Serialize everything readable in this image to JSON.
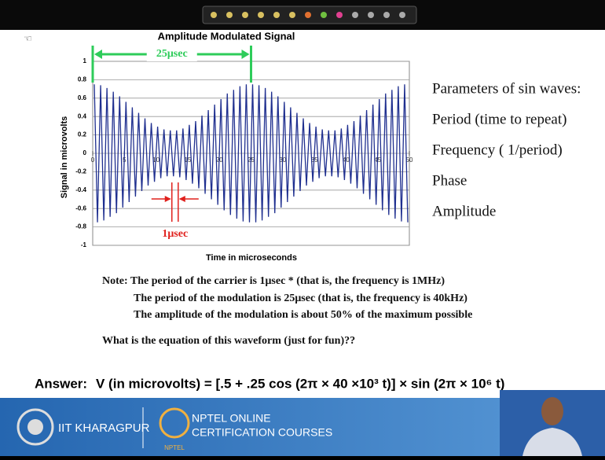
{
  "chart_data": {
    "type": "line",
    "title": "Amplitude Modulated Signal",
    "ylabel": "Signal in microvolts",
    "xlabel": "Time in microseconds",
    "color": "#1f2f8f",
    "xlim": [
      0,
      50
    ],
    "xticks": [
      0,
      5,
      10,
      15,
      20,
      25,
      30,
      35,
      40,
      45,
      50
    ],
    "ylim": [
      -1,
      1
    ],
    "yticks": [
      -1,
      -0.8,
      -0.6,
      -0.4,
      -0.2,
      0,
      0.2,
      0.4,
      0.6,
      0.8,
      1
    ],
    "grid": true,
    "annotations": [
      {
        "text": "25μsec",
        "color": "#2ecc5a"
      },
      {
        "text": "1μsec",
        "color": "#e0201c"
      }
    ],
    "x": [
      0.25,
      0.75,
      1.25,
      1.75,
      2.25,
      2.75,
      3.25,
      3.75,
      4.25,
      4.75,
      5.25,
      5.75,
      6.25,
      6.75,
      7.25,
      7.75,
      8.25,
      8.75,
      9.25,
      9.75,
      10.25,
      10.75,
      11.25,
      11.75,
      12.25,
      12.75,
      13.25,
      13.75,
      14.25,
      14.75,
      15.25,
      15.75,
      16.25,
      16.75,
      17.25,
      17.75,
      18.25,
      18.75,
      19.25,
      19.75,
      20.25,
      20.75,
      21.25,
      21.75,
      22.25,
      22.75,
      23.25,
      23.75,
      24.25,
      24.75,
      25.25,
      25.75,
      26.25,
      26.75,
      27.25,
      27.75,
      28.25,
      28.75,
      29.25,
      29.75,
      30.25,
      30.75,
      31.25,
      31.75,
      32.25,
      32.75,
      33.25,
      33.75,
      34.25,
      34.75,
      35.25,
      35.75,
      36.25,
      36.75,
      37.25,
      37.75,
      38.25,
      38.75,
      39.25,
      39.75,
      40.25,
      40.75,
      41.25,
      41.75,
      42.25,
      42.75,
      43.25,
      43.75,
      44.25,
      44.75,
      45.25,
      45.75,
      46.25,
      46.75,
      47.25,
      47.75,
      48.25,
      48.75,
      49.25,
      49.75
    ],
    "values": [
      0.75,
      -0.75,
      0.74,
      -0.73,
      0.71,
      -0.69,
      0.67,
      -0.65,
      0.62,
      -0.59,
      0.56,
      -0.53,
      0.5,
      -0.47,
      0.44,
      -0.41,
      0.38,
      -0.35,
      0.33,
      -0.31,
      0.29,
      -0.27,
      0.26,
      -0.25,
      0.25,
      -0.25,
      0.25,
      -0.26,
      0.27,
      -0.29,
      0.31,
      -0.33,
      0.35,
      -0.38,
      0.41,
      -0.44,
      0.47,
      -0.5,
      0.53,
      -0.56,
      0.59,
      -0.62,
      0.65,
      -0.67,
      0.69,
      -0.71,
      0.73,
      -0.74,
      0.75,
      -0.75,
      0.75,
      -0.75,
      0.74,
      -0.73,
      0.71,
      -0.69,
      0.67,
      -0.65,
      0.62,
      -0.59,
      0.56,
      -0.53,
      0.5,
      -0.47,
      0.44,
      -0.41,
      0.38,
      -0.35,
      0.33,
      -0.31,
      0.29,
      -0.27,
      0.26,
      -0.25,
      0.25,
      -0.25,
      0.25,
      -0.26,
      0.27,
      -0.29,
      0.31,
      -0.33,
      0.35,
      -0.38,
      0.41,
      -0.44,
      0.47,
      -0.5,
      0.53,
      -0.56,
      0.59,
      -0.62,
      0.65,
      -0.67,
      0.69,
      -0.71,
      0.73,
      -0.74,
      0.75,
      -0.75
    ]
  },
  "slide": {
    "parameters_title": "Parameters of sin waves:",
    "parameters": [
      "Period (time to repeat)",
      "Frequency ( 1/period)",
      "Phase",
      "Amplitude"
    ],
    "notes": [
      "Note: The period of the carrier is 1μsec * (that is, the frequency is 1MHz)",
      "The period of the modulation is 25μsec (that is, the frequency is 40kHz)",
      "The amplitude of the modulation is about 50% of the maximum possible"
    ],
    "question": "What is the equation of this waveform (just for fun)??",
    "answer_label": "Answer:",
    "answer": "V (in microvolts) = [.5 + .25 cos (2π × 40 ×10³ t)] × sin (2π × 10⁶ t)"
  },
  "footer": {
    "institute": "IIT KHARAGPUR",
    "course_line1": "NPTEL ONLINE",
    "course_line2": "CERTIFICATION COURSES",
    "logo_text": "NPTEL"
  }
}
